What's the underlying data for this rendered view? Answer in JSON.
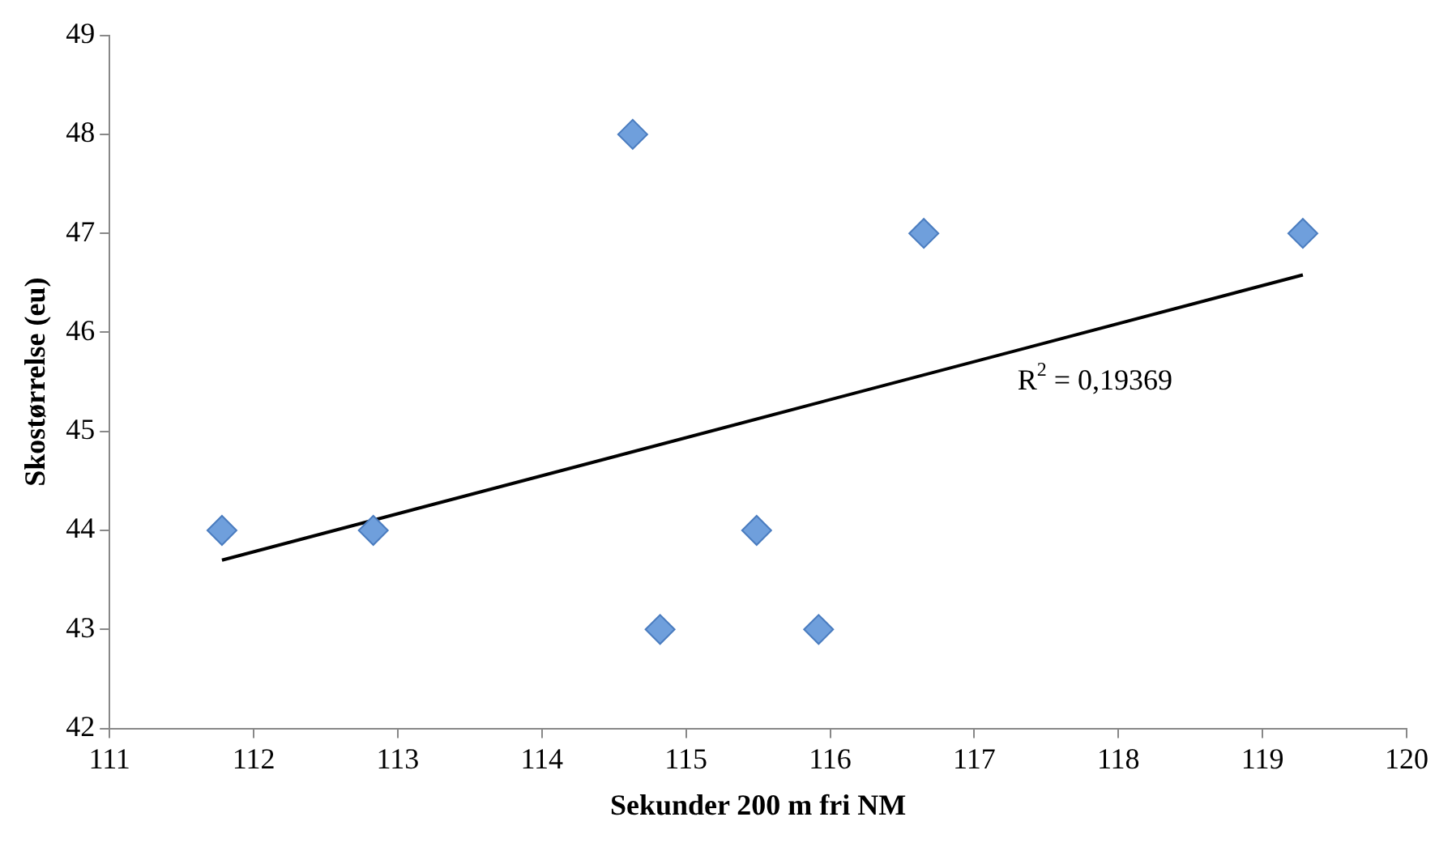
{
  "chart_data": {
    "type": "scatter",
    "xlabel": "Sekunder 200 m fri NM",
    "ylabel": "Skostørrelse (eu)",
    "series": [
      {
        "color": "#6f9fdc",
        "marker": "diamond",
        "x": [
          111.78,
          112.83,
          114.63,
          114.82,
          115.49,
          115.92,
          116.65,
          119.28
        ],
        "values": [
          44,
          44,
          48,
          43,
          44,
          43,
          47,
          47
        ]
      },
      {
        "type": "line",
        "marker": "none",
        "color": "#000000",
        "x": [
          111.78,
          119.28
        ],
        "values": [
          43.7,
          46.58
        ]
      }
    ],
    "annotations": [
      "R$^{2}$ = 0,19369"
    ],
    "xlim": [
      111,
      120
    ],
    "xticks": [
      111,
      112,
      113,
      114,
      115,
      116,
      117,
      118,
      119,
      120
    ],
    "ylim": [
      42,
      49
    ],
    "yticks": [
      42,
      43,
      44,
      45,
      46,
      47,
      48,
      49
    ],
    "grid": false,
    "legend": false
  }
}
